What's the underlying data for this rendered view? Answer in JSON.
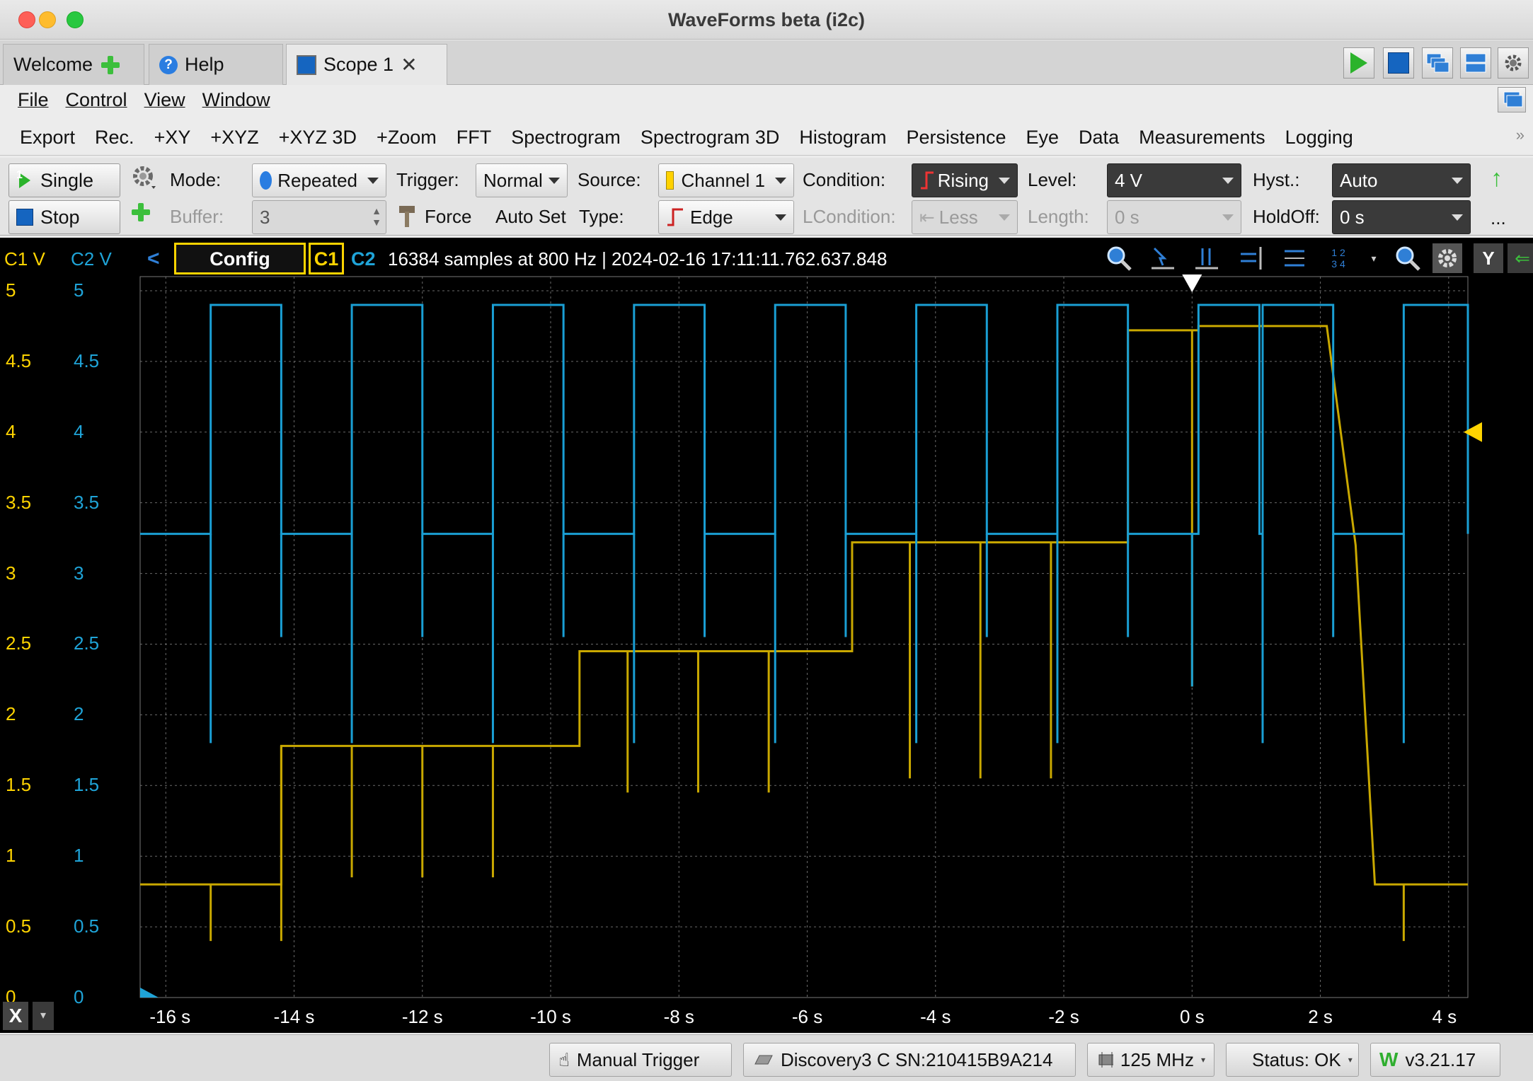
{
  "window": {
    "title": "WaveForms beta (i2c)"
  },
  "tabs": [
    {
      "label": "Welcome"
    },
    {
      "label": "Help"
    },
    {
      "label": "Scope 1"
    }
  ],
  "menu": [
    "File",
    "Control",
    "View",
    "Window"
  ],
  "tools": [
    "Export",
    "Rec.",
    "+XY",
    "+XYZ",
    "+XYZ 3D",
    "+Zoom",
    "FFT",
    "Spectrogram",
    "Spectrogram 3D",
    "Histogram",
    "Persistence",
    "Eye",
    "Data",
    "Measurements",
    "Logging"
  ],
  "controls": {
    "single_label": "Single",
    "single_badge": "1",
    "stop_label": "Stop",
    "mode_label": "Mode:",
    "mode_value": "Repeated",
    "buffer_label": "Buffer:",
    "buffer_value": "3",
    "trigger_label": "Trigger:",
    "trigger_value": "Normal",
    "force_label": "Force",
    "autoset_label": "Auto Set",
    "source_label": "Source:",
    "source_value": "Channel 1",
    "type_label": "Type:",
    "type_value": "Edge",
    "condition_label": "Condition:",
    "condition_value": "Rising",
    "lcondition_label": "LCondition:",
    "lcondition_value": "Less",
    "level_label": "Level:",
    "level_value": "4 V",
    "length_label": "Length:",
    "length_value": "0 s",
    "hyst_label": "Hyst.:",
    "hyst_value": "Auto",
    "holdoff_label": "HoldOff:",
    "holdoff_value": "0 s",
    "more_label": "..."
  },
  "scope": {
    "c1_units": "C1 V",
    "c2_units": "C2 V",
    "config_label": "Config",
    "c1_tag": "C1",
    "c2_tag": "C2",
    "info": "16384 samples at 800 Hz  | 2024-02-16 17:11:11.762.637.848",
    "y_button": "Y",
    "x_button": "X",
    "y_ticks_c1": [
      "5",
      "4.5",
      "4",
      "3.5",
      "3",
      "2.5",
      "2",
      "1.5",
      "1",
      "0.5",
      "0"
    ],
    "y_ticks_c2": [
      "5",
      "4.5",
      "4",
      "3.5",
      "3",
      "2.5",
      "2",
      "1.5",
      "1",
      "0.5",
      "0"
    ],
    "x_ticks": [
      "-16 s",
      "-14 s",
      "-12 s",
      "-10 s",
      "-8 s",
      "-6 s",
      "-4 s",
      "-2 s",
      "0 s",
      "2 s",
      "4 s"
    ],
    "colors": {
      "c1": "#c9a800",
      "c2": "#1a9fd4"
    }
  },
  "statusbar": {
    "manual_trigger": "Manual Trigger",
    "device": "Discovery3 C SN:210415B9A214",
    "clock": "125 MHz",
    "status": "Status: OK",
    "version": "v3.21.17"
  }
}
